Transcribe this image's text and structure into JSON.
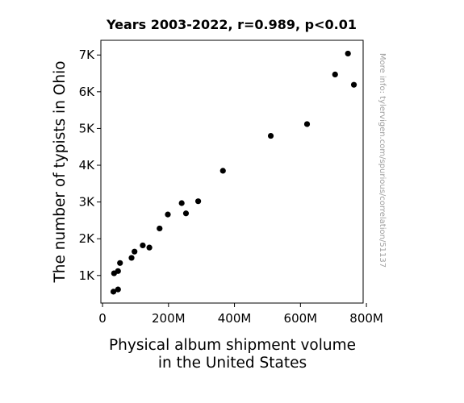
{
  "chart_data": {
    "type": "scatter",
    "title": "Years 2003-2022, r=0.989, p<0.01",
    "xlabel_lines": [
      "Physical album shipment volume",
      "in the United States"
    ],
    "ylabel": "The number of typists in Ohio",
    "side_note": "More info: tylervigen.com/spurious/correlation/51137",
    "xlim": [
      -5,
      790
    ],
    "ylim": [
      250,
      7400
    ],
    "x_ticks": [
      {
        "value": 0,
        "label": "0"
      },
      {
        "value": 200,
        "label": "200M"
      },
      {
        "value": 400,
        "label": "400M"
      },
      {
        "value": 600,
        "label": "600M"
      },
      {
        "value": 800,
        "label": "800M"
      }
    ],
    "y_ticks": [
      {
        "value": 1000,
        "label": "1K"
      },
      {
        "value": 2000,
        "label": "2K"
      },
      {
        "value": 3000,
        "label": "3K"
      },
      {
        "value": 4000,
        "label": "4K"
      },
      {
        "value": 5000,
        "label": "5K"
      },
      {
        "value": 6000,
        "label": "6K"
      },
      {
        "value": 7000,
        "label": "7K"
      }
    ],
    "points": [
      {
        "x": 33,
        "y": 560
      },
      {
        "x": 47,
        "y": 620
      },
      {
        "x": 35,
        "y": 1060
      },
      {
        "x": 47,
        "y": 1120
      },
      {
        "x": 53,
        "y": 1340
      },
      {
        "x": 88,
        "y": 1480
      },
      {
        "x": 97,
        "y": 1650
      },
      {
        "x": 122,
        "y": 1820
      },
      {
        "x": 142,
        "y": 1760
      },
      {
        "x": 173,
        "y": 2280
      },
      {
        "x": 198,
        "y": 2660
      },
      {
        "x": 240,
        "y": 2970
      },
      {
        "x": 253,
        "y": 2690
      },
      {
        "x": 290,
        "y": 3020
      },
      {
        "x": 365,
        "y": 3850
      },
      {
        "x": 510,
        "y": 4800
      },
      {
        "x": 620,
        "y": 5120
      },
      {
        "x": 705,
        "y": 6470
      },
      {
        "x": 744,
        "y": 7040
      },
      {
        "x": 762,
        "y": 6190
      }
    ]
  }
}
